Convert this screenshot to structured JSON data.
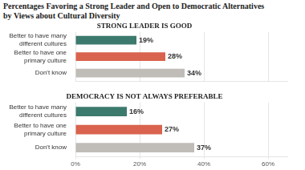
{
  "title": [
    "Percentages Favoring a Strong Leader and Open to Democratic Alternatives",
    "by Views about Cultural Diversity"
  ],
  "chart_data": [
    {
      "type": "bar",
      "orientation": "horizontal",
      "title": "STRONG LEADER IS GOOD",
      "categories": [
        "Better to have many\ndifferent cultures",
        "Better to have one\nprimary culture",
        "Don't know"
      ],
      "values": [
        19,
        28,
        34
      ],
      "value_labels": [
        "19%",
        "28%",
        "34%"
      ],
      "colors": [
        "#3d7a6e",
        "#d9634e",
        "#c0bdb8"
      ],
      "xlim": [
        0,
        66
      ],
      "xticks": [
        {
          "value": 0,
          "label": "0%"
        },
        {
          "value": 20,
          "label": "20%"
        },
        {
          "value": 40,
          "label": "40%"
        },
        {
          "value": 60,
          "label": "60%"
        }
      ],
      "grid": true,
      "data_labels": true,
      "tick_labels": "y"
    },
    {
      "type": "bar",
      "orientation": "horizontal",
      "title": "DEMOCRACY IS NOT ALWAYS PREFERABLE",
      "categories": [
        "Better to have many\ndifferent cultures",
        "Better to have one\nprimary culture",
        "Don't know"
      ],
      "values": [
        16,
        27,
        37
      ],
      "value_labels": [
        "16%",
        "27%",
        "37%"
      ],
      "colors": [
        "#3d7a6e",
        "#d9634e",
        "#c0bdb8"
      ],
      "xlim": [
        0,
        66
      ],
      "xticks": [
        {
          "value": 0,
          "label": "0%"
        },
        {
          "value": 20,
          "label": "20%"
        },
        {
          "value": 40,
          "label": "40%"
        },
        {
          "value": 60,
          "label": "60%"
        }
      ],
      "grid": true,
      "data_labels": true
    }
  ]
}
